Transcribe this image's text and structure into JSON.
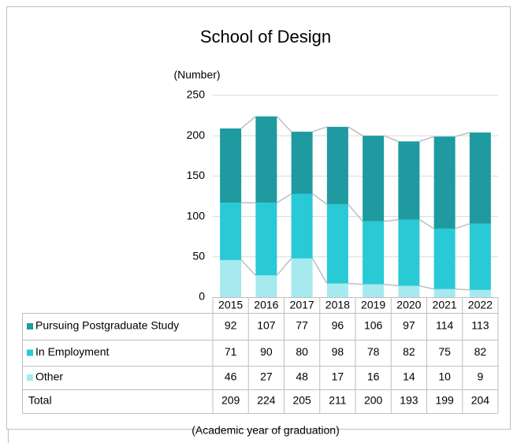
{
  "chart_data": {
    "type": "stacked_bar",
    "title": "School of Design",
    "y_label": "(Number)",
    "x_label": "(Academic year of graduation)",
    "categories": [
      "2015",
      "2016",
      "2017",
      "2018",
      "2019",
      "2020",
      "2021",
      "2022"
    ],
    "series": [
      {
        "name": "Pursuing Postgraduate Study",
        "color": "#1e9aa0",
        "values": [
          92,
          107,
          77,
          96,
          106,
          97,
          114,
          113
        ]
      },
      {
        "name": "In Employment",
        "color": "#29c9d6",
        "values": [
          71,
          90,
          80,
          98,
          78,
          82,
          75,
          82
        ]
      },
      {
        "name": "Other",
        "color": "#a6e9ee",
        "values": [
          46,
          27,
          48,
          17,
          16,
          14,
          10,
          9
        ]
      }
    ],
    "total_label": "Total",
    "totals": [
      209,
      224,
      205,
      211,
      200,
      193,
      199,
      204
    ],
    "ylim": [
      0,
      250
    ],
    "yticks": [
      0,
      50,
      100,
      150,
      200,
      250
    ],
    "grid": true
  }
}
